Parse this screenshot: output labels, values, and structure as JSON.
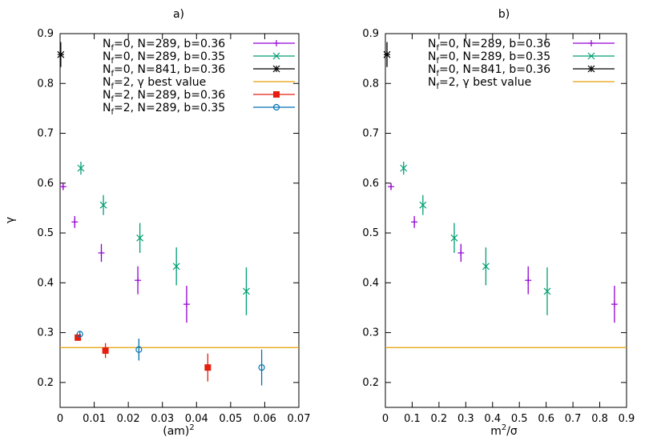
{
  "chart_data": [
    {
      "type": "scatter",
      "panel_label": "a)",
      "xlabel": "(am)",
      "xlabel_sup": "2",
      "ylabel": "γ",
      "xlim": [
        0,
        0.07
      ],
      "ylim": [
        0.15,
        0.9
      ],
      "xticks": [
        0,
        0.01,
        0.02,
        0.03,
        0.04,
        0.05,
        0.06,
        0.07
      ],
      "xtick_labels": [
        "0",
        "0.01",
        "0.02",
        "0.03",
        "0.04",
        "0.05",
        "0.06",
        "0.07"
      ],
      "yticks": [
        0.2,
        0.3,
        0.4,
        0.5,
        0.6,
        0.7,
        0.8,
        0.9
      ],
      "ytick_labels": [
        "0.2",
        "0.3",
        "0.4",
        "0.5",
        "0.6",
        "0.7",
        "0.8",
        "0.9"
      ],
      "legend_position": "top-right",
      "hline": {
        "y": 0.27,
        "series": "Nf2_best"
      },
      "series": [
        {
          "id": "s1",
          "name": {
            "pre": "N",
            "sub": "f",
            "post": "=0, N=289, b=0.36"
          },
          "marker": "plus",
          "color": "#9400d3",
          "points": [
            [
              0.0009,
              0.593,
              0.007
            ],
            [
              0.0043,
              0.522,
              0.012
            ],
            [
              0.0121,
              0.46,
              0.018
            ],
            [
              0.0228,
              0.405,
              0.028
            ],
            [
              0.0371,
              0.357,
              0.037
            ]
          ]
        },
        {
          "id": "s2",
          "name": {
            "pre": "N",
            "sub": "f",
            "post": "=0, N=289, b=0.35"
          },
          "marker": "x",
          "color": "#009e73",
          "points": [
            [
              0.0061,
              0.63,
              0.013
            ],
            [
              0.0127,
              0.556,
              0.02
            ],
            [
              0.0234,
              0.49,
              0.03
            ],
            [
              0.0341,
              0.433,
              0.038
            ],
            [
              0.0546,
              0.383,
              0.048
            ]
          ]
        },
        {
          "id": "s3",
          "name": {
            "pre": "N",
            "sub": "f",
            "post": "=0, N=841, b=0.36"
          },
          "marker": "star",
          "color": "#000000",
          "points": [
            [
              0.0002,
              0.858,
              0.025
            ]
          ]
        },
        {
          "id": "Nf2_best",
          "name": {
            "pre": "N",
            "sub": "f",
            "post": "=2, γ  best value"
          },
          "marker": "line",
          "color": "#e69f00",
          "points": []
        },
        {
          "id": "s4",
          "name": {
            "pre": "N",
            "sub": "f",
            "post": "=2, N=289, b=0.36"
          },
          "marker": "square",
          "color": "#e51e10",
          "points": [
            [
              0.0052,
              0.29,
              0.006
            ],
            [
              0.0133,
              0.264,
              0.015
            ],
            [
              0.0433,
              0.23,
              0.028
            ]
          ]
        },
        {
          "id": "s5",
          "name": {
            "pre": "N",
            "sub": "f",
            "post": "=2, N=289, b=0.35"
          },
          "marker": "circle",
          "color": "#0072b2",
          "points": [
            [
              0.0058,
              0.297,
              0.006
            ],
            [
              0.0231,
              0.266,
              0.022
            ],
            [
              0.0591,
              0.23,
              0.036
            ]
          ]
        }
      ]
    },
    {
      "type": "scatter",
      "panel_label": "b)",
      "xlabel": "m",
      "xlabel_sup": "2",
      "xlabel_post": "/σ",
      "ylabel": "",
      "xlim": [
        0,
        0.9
      ],
      "ylim": [
        0.15,
        0.9
      ],
      "xticks": [
        0,
        0.1,
        0.2,
        0.3,
        0.4,
        0.5,
        0.6,
        0.7,
        0.8,
        0.9
      ],
      "xtick_labels": [
        "0",
        "0.1",
        "0.2",
        "0.3",
        "0.4",
        "0.5",
        "0.6",
        "0.7",
        "0.8",
        "0.9"
      ],
      "yticks": [
        0.2,
        0.3,
        0.4,
        0.5,
        0.6,
        0.7,
        0.8,
        0.9
      ],
      "ytick_labels": [
        "0.2",
        "0.3",
        "0.4",
        "0.5",
        "0.6",
        "0.7",
        "0.8",
        "0.9"
      ],
      "legend_position": "top-right",
      "hline": {
        "y": 0.27,
        "series": "Nf2_best"
      },
      "series": [
        {
          "id": "s1",
          "name": {
            "pre": "N",
            "sub": "f",
            "post": "=0, N=289, b=0.36"
          },
          "marker": "plus",
          "color": "#9400d3",
          "points": [
            [
              0.021,
              0.593,
              0.007
            ],
            [
              0.108,
              0.522,
              0.012
            ],
            [
              0.282,
              0.46,
              0.018
            ],
            [
              0.533,
              0.405,
              0.028
            ],
            [
              0.855,
              0.357,
              0.037
            ]
          ]
        },
        {
          "id": "s2",
          "name": {
            "pre": "N",
            "sub": "f",
            "post": "=0, N=289, b=0.35"
          },
          "marker": "x",
          "color": "#009e73",
          "points": [
            [
              0.068,
              0.63,
              0.013
            ],
            [
              0.14,
              0.556,
              0.02
            ],
            [
              0.257,
              0.49,
              0.03
            ],
            [
              0.375,
              0.433,
              0.038
            ],
            [
              0.604,
              0.383,
              0.048
            ]
          ]
        },
        {
          "id": "s3",
          "name": {
            "pre": "N",
            "sub": "f",
            "post": "=0, N=841, b=0.36"
          },
          "marker": "star",
          "color": "#000000",
          "points": [
            [
              0.006,
              0.858,
              0.025
            ]
          ]
        },
        {
          "id": "Nf2_best",
          "name": {
            "pre": "N",
            "sub": "f",
            "post": "=2, γ  best value"
          },
          "marker": "line",
          "color": "#e69f00",
          "points": []
        }
      ]
    }
  ]
}
